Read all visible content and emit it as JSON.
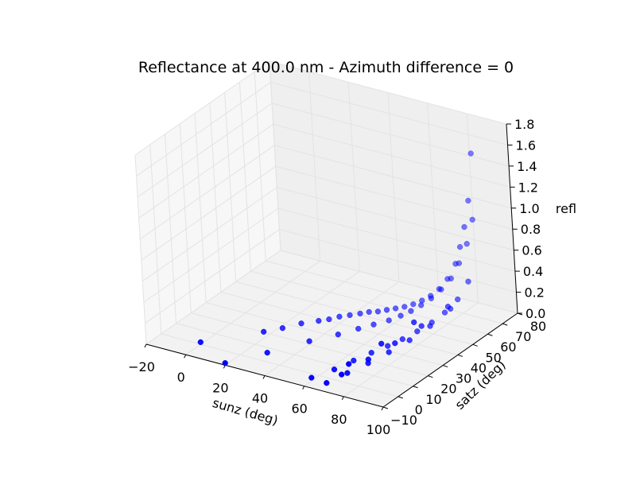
{
  "chart_data": {
    "type": "scatter3d",
    "title": "Reflectance at 400.0 nm - Azimuth difference = 0",
    "xlabel": "sunz (deg)",
    "ylabel": "satz (deg)",
    "zlabel": "refl",
    "xlim": [
      -20,
      100
    ],
    "ylim": [
      -10,
      80
    ],
    "zlim": [
      0.0,
      1.8
    ],
    "xticks": [
      "−20",
      "0",
      "20",
      "40",
      "60",
      "80",
      "100"
    ],
    "yticks": [
      "−10",
      "0",
      "10",
      "20",
      "30",
      "40",
      "50",
      "60",
      "70",
      "80"
    ],
    "zticks": [
      "0.0",
      "0.2",
      "0.4",
      "0.6",
      "0.8",
      "1.0",
      "1.2",
      "1.4",
      "1.6",
      "1.8"
    ],
    "grid": true,
    "marker_color": "#0000ff",
    "series": [
      {
        "x": [
          0,
          20,
          25,
          30,
          35,
          38,
          41,
          44,
          47,
          50,
          53,
          56,
          59,
          62,
          65,
          68,
          71,
          74,
          77,
          80,
          82,
          84,
          86,
          88
        ],
        "y": [
          0,
          16,
          22,
          28,
          33,
          36,
          39,
          42,
          45,
          47,
          49,
          51,
          53,
          55,
          57,
          59,
          61,
          63,
          65,
          67,
          68,
          69,
          70,
          71
        ],
        "z": [
          0.02,
          0.06,
          0.06,
          0.07,
          0.07,
          0.07,
          0.08,
          0.08,
          0.08,
          0.09,
          0.09,
          0.1,
          0.11,
          0.12,
          0.14,
          0.17,
          0.21,
          0.27,
          0.36,
          0.5,
          0.66,
          0.85,
          1.1,
          1.55
        ]
      },
      {
        "x": [
          20,
          30,
          40,
          47,
          52,
          56,
          60,
          63,
          66,
          69,
          72,
          75,
          78,
          81,
          84,
          86
        ],
        "y": [
          -10,
          5,
          20,
          30,
          37,
          42,
          47,
          51,
          54,
          57,
          60,
          63,
          66,
          68,
          70,
          72
        ],
        "z": [
          0.02,
          0.02,
          0.03,
          0.03,
          0.04,
          0.05,
          0.06,
          0.08,
          0.11,
          0.15,
          0.2,
          0.27,
          0.36,
          0.5,
          0.68,
          0.9
        ]
      },
      {
        "x": [
          60,
          64,
          67,
          70,
          73,
          76,
          79,
          82,
          85,
          88,
          90
        ],
        "y": [
          -5,
          5,
          14,
          22,
          29,
          35,
          41,
          47,
          52,
          57,
          62
        ],
        "z": [
          0.03,
          0.03,
          0.04,
          0.05,
          0.06,
          0.08,
          0.11,
          0.15,
          0.21,
          0.3,
          0.43
        ]
      },
      {
        "x": [
          70,
          73,
          76,
          79,
          82,
          85,
          88
        ],
        "y": [
          -8,
          2,
          12,
          22,
          32,
          42,
          52
        ],
        "z": [
          0.06,
          0.07,
          0.08,
          0.1,
          0.13,
          0.18,
          0.26
        ]
      },
      {
        "x": [
          78,
          81,
          84,
          87,
          90
        ],
        "y": [
          -8,
          6,
          20,
          34,
          48
        ],
        "z": [
          0.18,
          0.2,
          0.23,
          0.27,
          0.33
        ]
      },
      {
        "x": [
          82,
          85,
          88
        ],
        "y": [
          -8,
          10,
          28
        ],
        "z": [
          0.3,
          0.33,
          0.37
        ]
      }
    ]
  }
}
